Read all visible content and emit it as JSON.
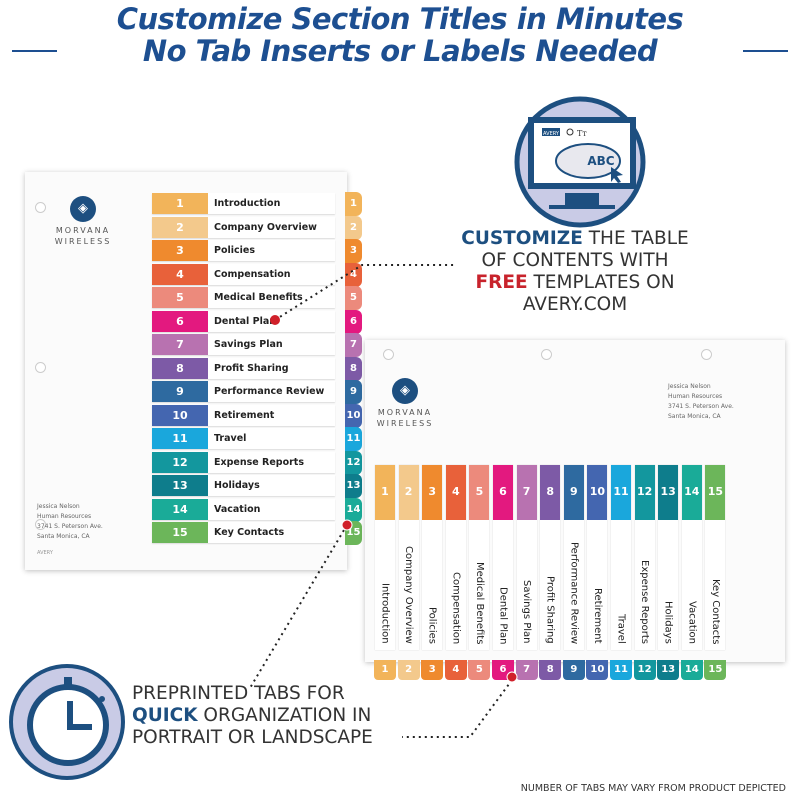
{
  "header": {
    "line1": "Customize Section Titles in Minutes",
    "line2": "No Tab Inserts or Labels Needed"
  },
  "logo": {
    "line1": "MORVANA",
    "line2": "WIRELESS"
  },
  "address": [
    "Jessica Nelson",
    "Human Resources",
    "3741 S. Peterson Ave.",
    "Santa Monica, CA"
  ],
  "brand_mark": "AVERY",
  "tabs": [
    {
      "num": "1",
      "label": "Introduction",
      "color": "#f2b45a"
    },
    {
      "num": "2",
      "label": "Company Overview",
      "color": "#f3c98c"
    },
    {
      "num": "3",
      "label": "Policies",
      "color": "#ef8a2e"
    },
    {
      "num": "4",
      "label": "Compensation",
      "color": "#e8613a"
    },
    {
      "num": "5",
      "label": "Medical Benefits",
      "color": "#ec8a7c"
    },
    {
      "num": "6",
      "label": "Dental Plan",
      "color": "#e3197f"
    },
    {
      "num": "7",
      "label": "Savings Plan",
      "color": "#b872b0"
    },
    {
      "num": "8",
      "label": "Profit Sharing",
      "color": "#7d5aa6"
    },
    {
      "num": "9",
      "label": "Performance Review",
      "color": "#2e6aa0"
    },
    {
      "num": "10",
      "label": "Retirement",
      "color": "#4466b0"
    },
    {
      "num": "11",
      "label": "Travel",
      "color": "#1aa7dc"
    },
    {
      "num": "12",
      "label": "Expense Reports",
      "color": "#13979e"
    },
    {
      "num": "13",
      "label": "Holidays",
      "color": "#0e7d8c"
    },
    {
      "num": "14",
      "label": "Vacation",
      "color": "#1aab98"
    },
    {
      "num": "15",
      "label": "Key Contacts",
      "color": "#6cb65a"
    }
  ],
  "customize": {
    "w1": "CUSTOMIZE",
    "r1": " THE TABLE",
    "l2": "OF CONTENTS WITH",
    "w3": "FREE",
    "r3": " TEMPLATES ON",
    "l4": "AVERY.COM"
  },
  "monitor": {
    "brand": "AVERY",
    "text": "ABC",
    "font_icon": "Tт"
  },
  "preprinted": {
    "l1": "PREPRINTED TABS FOR",
    "w2": "QUICK",
    "r2": " ORGANIZATION IN",
    "l3": "PORTRAIT OR LANDSCAPE"
  },
  "footnote": "NUMBER OF TABS MAY VARY FROM PRODUCT DEPICTED",
  "colors": {
    "navy": "#1d4f91",
    "red": "#c8232c",
    "icon_fill": "#c9cbe6"
  }
}
